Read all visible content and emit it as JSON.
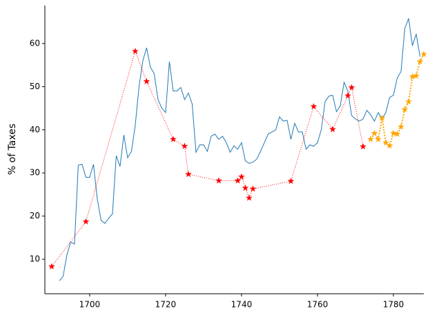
{
  "chart_data": {
    "type": "line",
    "ylabel": "% of Taxes",
    "xlim": [
      1688.2,
      1788
    ],
    "ylim": [
      2,
      68.8
    ],
    "xticks": [
      1700,
      1720,
      1740,
      1760,
      1780
    ],
    "yticks": [
      10,
      20,
      30,
      40,
      50,
      60
    ],
    "series": [
      {
        "color": "#1f77b4",
        "linestyle": "solid",
        "marker": "none",
        "x": [
          1692,
          1693,
          1694,
          1695,
          1696,
          1697,
          1698,
          1699,
          1700,
          1701,
          1702,
          1703,
          1704,
          1705,
          1706,
          1707,
          1708,
          1709,
          1710,
          1711,
          1712,
          1713,
          1714,
          1715,
          1716,
          1717,
          1718,
          1719,
          1720,
          1721,
          1722,
          1723,
          1724,
          1725,
          1726,
          1727,
          1728,
          1729,
          1730,
          1731,
          1732,
          1733,
          1734,
          1735,
          1736,
          1737,
          1738,
          1739,
          1740,
          1741,
          1742,
          1743,
          1744,
          1745,
          1746,
          1747,
          1748,
          1749,
          1750,
          1751,
          1752,
          1753,
          1754,
          1755,
          1756,
          1757,
          1758,
          1759,
          1760,
          1761,
          1762,
          1763,
          1764,
          1765,
          1766,
          1767,
          1768,
          1769,
          1770,
          1771,
          1772,
          1773,
          1774,
          1775,
          1776,
          1777,
          1778,
          1779,
          1780,
          1781,
          1782,
          1783,
          1784,
          1785,
          1786,
          1787
        ],
        "values": [
          5,
          6,
          11,
          14,
          13.5,
          31.8,
          32,
          29,
          29,
          32,
          24,
          19,
          18.3,
          19.5,
          20.5,
          34,
          31.5,
          38.8,
          33.5,
          35,
          41,
          50,
          56,
          59,
          54.5,
          53,
          47,
          45,
          44,
          55.8,
          49,
          49,
          49.8,
          47,
          48.5,
          46,
          34.8,
          36.5,
          36.5,
          35,
          38.5,
          39,
          37.8,
          38.5,
          37,
          34.8,
          36.3,
          35.5,
          37,
          32.8,
          32.2,
          32.5,
          33.2,
          35,
          37,
          39,
          39.5,
          40,
          43,
          42,
          42.2,
          37.8,
          41.5,
          39.5,
          39.5,
          35.5,
          36.5,
          36.2,
          37,
          40,
          46.5,
          47.8,
          48,
          44.2,
          45.5,
          51,
          49,
          43.3,
          42.5,
          42,
          42.5,
          44.5,
          43.5,
          42,
          44,
          42.5,
          44,
          47.5,
          48,
          52,
          53.5,
          63.5,
          65.8,
          59.5,
          62.2,
          57
        ]
      },
      {
        "color": "#ff0000",
        "linestyle": "dotted",
        "marker": "star",
        "x": [
          1690,
          1699,
          1712,
          1715,
          1722,
          1725,
          1726,
          1734,
          1739,
          1740,
          1741,
          1742,
          1743,
          1753,
          1759,
          1764,
          1768,
          1769,
          1772
        ],
        "values": [
          8.3,
          18.7,
          58.2,
          51.2,
          37.8,
          36.2,
          29.7,
          28.2,
          28.2,
          29.1,
          26.5,
          24.2,
          26.3,
          28.1,
          45.4,
          40.1,
          47.9,
          49.8,
          36.1
        ]
      },
      {
        "color": "#ffa500",
        "linestyle": "dotted",
        "marker": "star",
        "x": [
          1774,
          1775,
          1776,
          1777,
          1778,
          1779,
          1780,
          1781,
          1782,
          1783,
          1784,
          1785,
          1786,
          1787,
          1788
        ],
        "values": [
          37.8,
          39.2,
          37.8,
          42.7,
          37,
          36.3,
          39.2,
          39,
          40.7,
          44.7,
          46.5,
          52.3,
          52.5,
          55.8,
          57.5
        ]
      }
    ]
  }
}
